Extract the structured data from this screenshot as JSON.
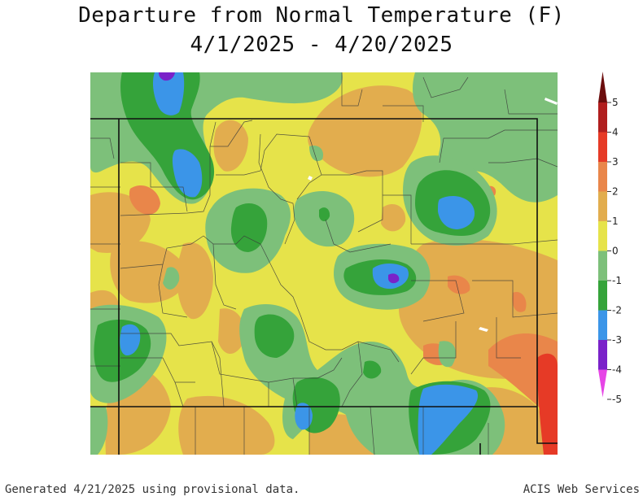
{
  "title": {
    "line1": "Departure from Normal Temperature (F)",
    "line2": "4/1/2025 - 4/20/2025"
  },
  "legend": {
    "tick_labels": [
      "5",
      "4",
      "3",
      "2",
      "1",
      "0",
      "-1",
      "-2",
      "-3",
      "-4",
      "-5"
    ],
    "colors": [
      "#6b0d0d",
      "#b01e1e",
      "#e63a26",
      "#e9864a",
      "#e2ad4e",
      "#e6e34a",
      "#7dc07a",
      "#35a33a",
      "#3b95e8",
      "#7a22c9",
      "#e645e6"
    ],
    "units": "°F"
  },
  "map": {
    "colors": {
      "base": "#e6e34a",
      "plus_1": "#e2ad4e",
      "plus_2": "#e9864a",
      "plus_3": "#e63a26",
      "minus_1": "#7dc07a",
      "minus_2": "#35a33a",
      "minus_3": "#3b95e8",
      "minus_4": "#7a22c9"
    }
  },
  "footer": {
    "left": "Generated 4/21/2025 using provisional data.",
    "right": "ACIS Web Services"
  }
}
